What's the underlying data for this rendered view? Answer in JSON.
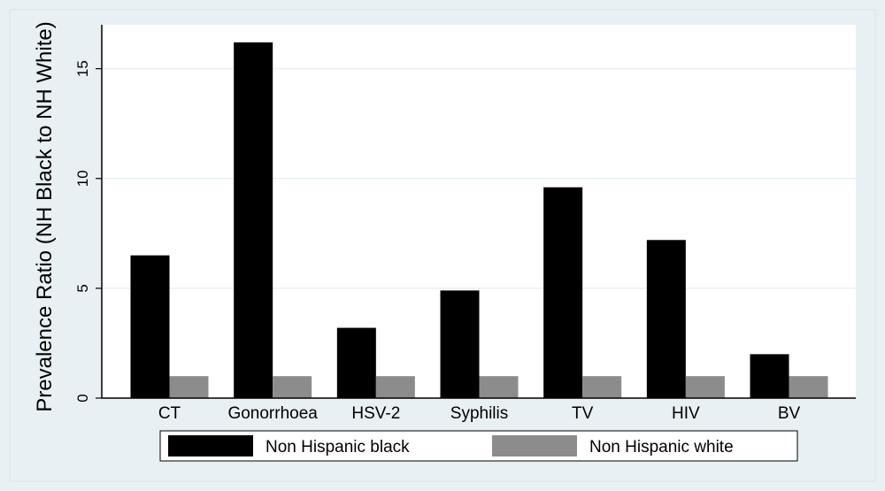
{
  "colors": {
    "outer_background": "#e9f0f3",
    "plot_background": "#ffffff",
    "gridline": "#e9f0f3",
    "axis": "#000000",
    "text": "#000000",
    "legend_border": "#000000"
  },
  "chart_data": {
    "type": "bar",
    "title": "",
    "xlabel": "",
    "ylabel": "Prevalence Ratio (NH Black to NH White)",
    "ylim": [
      0,
      17
    ],
    "yticks": [
      0,
      5,
      10,
      15
    ],
    "grid": true,
    "legend_placement": "bottom",
    "categories": [
      "CT",
      "Gonorrhoea",
      "HSV-2",
      "Syphilis",
      "TV",
      "HIV",
      "BV"
    ],
    "series": [
      {
        "name": "Non Hispanic black",
        "color": "#000000",
        "values": [
          6.5,
          16.2,
          3.2,
          4.9,
          9.6,
          7.2,
          2.0
        ]
      },
      {
        "name": "Non Hispanic white",
        "color": "#8c8c8c",
        "values": [
          1,
          1,
          1,
          1,
          1,
          1,
          1
        ]
      }
    ]
  }
}
